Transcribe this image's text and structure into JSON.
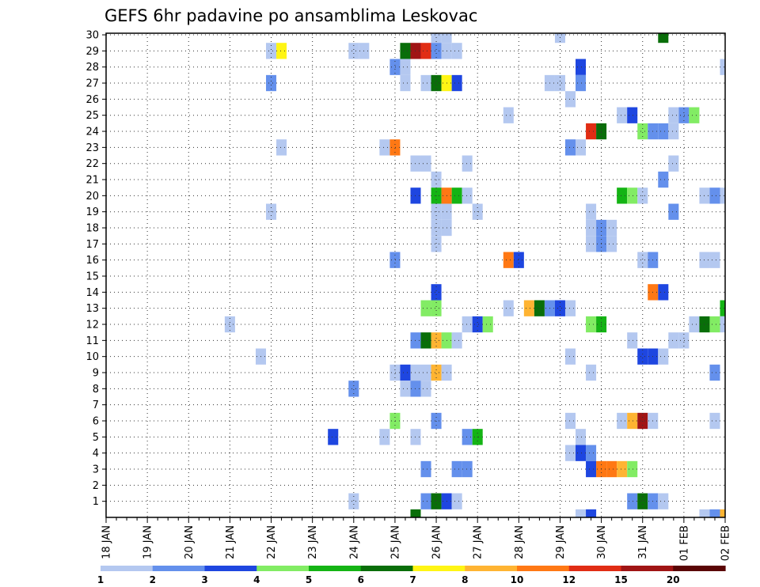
{
  "chart_data": {
    "type": "heatmap",
    "title": "GEFS 6hr padavine po ansamblima Leskovac",
    "y_members": [
      1,
      2,
      3,
      4,
      5,
      6,
      7,
      8,
      9,
      10,
      11,
      12,
      13,
      14,
      15,
      16,
      17,
      18,
      19,
      20,
      21,
      22,
      23,
      24,
      25,
      26,
      27,
      28,
      29,
      30
    ],
    "y_ticks": [
      "1",
      "2",
      "3",
      "4",
      "5",
      "6",
      "7",
      "8",
      "9",
      "10",
      "11",
      "12",
      "13",
      "14",
      "15",
      "16",
      "17",
      "18",
      "19",
      "20",
      "21",
      "22",
      "23",
      "24",
      "25",
      "26",
      "27",
      "28",
      "29",
      "30"
    ],
    "x_ticks": [
      "18 JAN",
      "19 JAN",
      "20 JAN",
      "21 JAN",
      "22 JAN",
      "23 JAN",
      "24 JAN",
      "25 JAN",
      "26 JAN",
      "27 JAN",
      "28 JAN",
      "29 JAN",
      "30 JAN",
      "31 JAN",
      "01 FEB",
      "02 FEB"
    ],
    "x_range": [
      "18 JAN 00Z",
      "02 FEB 00Z"
    ],
    "time_step": "6hr",
    "grid": true,
    "legend": {
      "position": "bottom",
      "levels": [
        "1",
        "2",
        "3",
        "4",
        "5",
        "6",
        "7",
        "8",
        "10",
        "12",
        "15",
        "20"
      ],
      "colors": [
        "#b4c8f0",
        "#6490ec",
        "#1e46e0",
        "#82ec64",
        "#14b414",
        "#096e09",
        "#fff514",
        "#ffb432",
        "#ff7814",
        "#e12d14",
        "#a01414",
        "#5a0505"
      ]
    },
    "cells": [
      {
        "member": 30,
        "time": "26 JAN 00Z",
        "bin": 0
      },
      {
        "member": 30,
        "time": "26 JAN 06Z",
        "bin": 0
      },
      {
        "member": 30,
        "time": "29 JAN 00Z",
        "bin": 0
      },
      {
        "member": 30,
        "time": "31 JAN 12Z",
        "bin": 5
      },
      {
        "member": 29,
        "time": "22 JAN 00Z",
        "bin": 0
      },
      {
        "member": 29,
        "time": "22 JAN 06Z",
        "bin": 6
      },
      {
        "member": 29,
        "time": "24 JAN 00Z",
        "bin": 0
      },
      {
        "member": 29,
        "time": "24 JAN 06Z",
        "bin": 0
      },
      {
        "member": 29,
        "time": "25 JAN 06Z",
        "bin": 5
      },
      {
        "member": 29,
        "time": "25 JAN 12Z",
        "bin": 10
      },
      {
        "member": 29,
        "time": "25 JAN 18Z",
        "bin": 9
      },
      {
        "member": 29,
        "time": "26 JAN 00Z",
        "bin": 1
      },
      {
        "member": 29,
        "time": "26 JAN 06Z",
        "bin": 0
      },
      {
        "member": 29,
        "time": "26 JAN 12Z",
        "bin": 0
      },
      {
        "member": 28,
        "time": "25 JAN 00Z",
        "bin": 1
      },
      {
        "member": 28,
        "time": "25 JAN 06Z",
        "bin": 0
      },
      {
        "member": 28,
        "time": "29 JAN 12Z",
        "bin": 2
      },
      {
        "member": 28,
        "time": "02 FEB 00Z",
        "bin": 0
      },
      {
        "member": 27,
        "time": "22 JAN 00Z",
        "bin": 1
      },
      {
        "member": 27,
        "time": "25 JAN 06Z",
        "bin": 0
      },
      {
        "member": 27,
        "time": "25 JAN 18Z",
        "bin": 0
      },
      {
        "member": 27,
        "time": "26 JAN 00Z",
        "bin": 5
      },
      {
        "member": 27,
        "time": "26 JAN 06Z",
        "bin": 6
      },
      {
        "member": 27,
        "time": "26 JAN 12Z",
        "bin": 2
      },
      {
        "member": 27,
        "time": "28 JAN 18Z",
        "bin": 0
      },
      {
        "member": 27,
        "time": "29 JAN 00Z",
        "bin": 0
      },
      {
        "member": 27,
        "time": "29 JAN 12Z",
        "bin": 1
      },
      {
        "member": 26,
        "time": "29 JAN 06Z",
        "bin": 0
      },
      {
        "member": 25,
        "time": "27 JAN 18Z",
        "bin": 0
      },
      {
        "member": 25,
        "time": "30 JAN 12Z",
        "bin": 0
      },
      {
        "member": 25,
        "time": "30 JAN 18Z",
        "bin": 2
      },
      {
        "member": 25,
        "time": "31 JAN 18Z",
        "bin": 0
      },
      {
        "member": 25,
        "time": "01 FEB 00Z",
        "bin": 1
      },
      {
        "member": 25,
        "time": "01 FEB 06Z",
        "bin": 3
      },
      {
        "member": 24,
        "time": "29 JAN 18Z",
        "bin": 9
      },
      {
        "member": 24,
        "time": "30 JAN 00Z",
        "bin": 5
      },
      {
        "member": 24,
        "time": "31 JAN 00Z",
        "bin": 3
      },
      {
        "member": 24,
        "time": "31 JAN 06Z",
        "bin": 1
      },
      {
        "member": 24,
        "time": "31 JAN 12Z",
        "bin": 1
      },
      {
        "member": 24,
        "time": "31 JAN 18Z",
        "bin": 0
      },
      {
        "member": 23,
        "time": "22 JAN 06Z",
        "bin": 0
      },
      {
        "member": 23,
        "time": "24 JAN 18Z",
        "bin": 0
      },
      {
        "member": 23,
        "time": "25 JAN 00Z",
        "bin": 8
      },
      {
        "member": 23,
        "time": "29 JAN 06Z",
        "bin": 1
      },
      {
        "member": 23,
        "time": "29 JAN 12Z",
        "bin": 0
      },
      {
        "member": 22,
        "time": "25 JAN 12Z",
        "bin": 0
      },
      {
        "member": 22,
        "time": "25 JAN 18Z",
        "bin": 0
      },
      {
        "member": 22,
        "time": "26 JAN 18Z",
        "bin": 0
      },
      {
        "member": 22,
        "time": "31 JAN 18Z",
        "bin": 0
      },
      {
        "member": 21,
        "time": "26 JAN 00Z",
        "bin": 0
      },
      {
        "member": 21,
        "time": "31 JAN 12Z",
        "bin": 1
      },
      {
        "member": 20,
        "time": "25 JAN 12Z",
        "bin": 2
      },
      {
        "member": 20,
        "time": "26 JAN 00Z",
        "bin": 4
      },
      {
        "member": 20,
        "time": "26 JAN 06Z",
        "bin": 8
      },
      {
        "member": 20,
        "time": "26 JAN 12Z",
        "bin": 4
      },
      {
        "member": 20,
        "time": "26 JAN 18Z",
        "bin": 0
      },
      {
        "member": 20,
        "time": "30 JAN 12Z",
        "bin": 4
      },
      {
        "member": 20,
        "time": "30 JAN 18Z",
        "bin": 3
      },
      {
        "member": 20,
        "time": "31 JAN 00Z",
        "bin": 0
      },
      {
        "member": 20,
        "time": "01 FEB 12Z",
        "bin": 0
      },
      {
        "member": 20,
        "time": "01 FEB 18Z",
        "bin": 1
      },
      {
        "member": 20,
        "time": "02 FEB 00Z",
        "bin": 0
      },
      {
        "member": 19,
        "time": "22 JAN 00Z",
        "bin": 0
      },
      {
        "member": 19,
        "time": "26 JAN 00Z",
        "bin": 0
      },
      {
        "member": 19,
        "time": "26 JAN 06Z",
        "bin": 0
      },
      {
        "member": 19,
        "time": "27 JAN 00Z",
        "bin": 0
      },
      {
        "member": 19,
        "time": "29 JAN 18Z",
        "bin": 0
      },
      {
        "member": 19,
        "time": "31 JAN 18Z",
        "bin": 1
      },
      {
        "member": 18,
        "time": "26 JAN 00Z",
        "bin": 0
      },
      {
        "member": 18,
        "time": "26 JAN 06Z",
        "bin": 0
      },
      {
        "member": 18,
        "time": "29 JAN 18Z",
        "bin": 0
      },
      {
        "member": 18,
        "time": "30 JAN 00Z",
        "bin": 1
      },
      {
        "member": 18,
        "time": "30 JAN 06Z",
        "bin": 0
      },
      {
        "member": 17,
        "time": "26 JAN 00Z",
        "bin": 0
      },
      {
        "member": 17,
        "time": "29 JAN 18Z",
        "bin": 0
      },
      {
        "member": 17,
        "time": "30 JAN 00Z",
        "bin": 1
      },
      {
        "member": 17,
        "time": "30 JAN 06Z",
        "bin": 0
      },
      {
        "member": 16,
        "time": "25 JAN 00Z",
        "bin": 1
      },
      {
        "member": 16,
        "time": "27 JAN 18Z",
        "bin": 8
      },
      {
        "member": 16,
        "time": "28 JAN 00Z",
        "bin": 2
      },
      {
        "member": 16,
        "time": "31 JAN 00Z",
        "bin": 0
      },
      {
        "member": 16,
        "time": "31 JAN 06Z",
        "bin": 1
      },
      {
        "member": 16,
        "time": "01 FEB 12Z",
        "bin": 0
      },
      {
        "member": 16,
        "time": "01 FEB 18Z",
        "bin": 0
      },
      {
        "member": 14,
        "time": "26 JAN 00Z",
        "bin": 2
      },
      {
        "member": 14,
        "time": "31 JAN 06Z",
        "bin": 8
      },
      {
        "member": 14,
        "time": "31 JAN 12Z",
        "bin": 2
      },
      {
        "member": 13,
        "time": "25 JAN 18Z",
        "bin": 3
      },
      {
        "member": 13,
        "time": "26 JAN 00Z",
        "bin": 3
      },
      {
        "member": 13,
        "time": "27 JAN 18Z",
        "bin": 0
      },
      {
        "member": 13,
        "time": "28 JAN 06Z",
        "bin": 7
      },
      {
        "member": 13,
        "time": "28 JAN 12Z",
        "bin": 5
      },
      {
        "member": 13,
        "time": "28 JAN 18Z",
        "bin": 1
      },
      {
        "member": 13,
        "time": "29 JAN 00Z",
        "bin": 2
      },
      {
        "member": 13,
        "time": "29 JAN 06Z",
        "bin": 0
      },
      {
        "member": 13,
        "time": "02 FEB 00Z",
        "bin": 4
      },
      {
        "member": 12,
        "time": "21 JAN 00Z",
        "bin": 0
      },
      {
        "member": 12,
        "time": "26 JAN 18Z",
        "bin": 0
      },
      {
        "member": 12,
        "time": "27 JAN 00Z",
        "bin": 2
      },
      {
        "member": 12,
        "time": "27 JAN 06Z",
        "bin": 3
      },
      {
        "member": 12,
        "time": "29 JAN 18Z",
        "bin": 3
      },
      {
        "member": 12,
        "time": "30 JAN 00Z",
        "bin": 4
      },
      {
        "member": 12,
        "time": "01 FEB 06Z",
        "bin": 0
      },
      {
        "member": 12,
        "time": "01 FEB 12Z",
        "bin": 5
      },
      {
        "member": 12,
        "time": "01 FEB 18Z",
        "bin": 3
      },
      {
        "member": 12,
        "time": "02 FEB 00Z",
        "bin": 0
      },
      {
        "member": 11,
        "time": "25 JAN 12Z",
        "bin": 1
      },
      {
        "member": 11,
        "time": "25 JAN 18Z",
        "bin": 5
      },
      {
        "member": 11,
        "time": "26 JAN 00Z",
        "bin": 7
      },
      {
        "member": 11,
        "time": "26 JAN 06Z",
        "bin": 3
      },
      {
        "member": 11,
        "time": "26 JAN 12Z",
        "bin": 0
      },
      {
        "member": 11,
        "time": "30 JAN 18Z",
        "bin": 0
      },
      {
        "member": 11,
        "time": "31 JAN 18Z",
        "bin": 0
      },
      {
        "member": 11,
        "time": "01 FEB 00Z",
        "bin": 0
      },
      {
        "member": 10,
        "time": "21 JAN 18Z",
        "bin": 0
      },
      {
        "member": 10,
        "time": "29 JAN 06Z",
        "bin": 0
      },
      {
        "member": 10,
        "time": "31 JAN 00Z",
        "bin": 2
      },
      {
        "member": 10,
        "time": "31 JAN 06Z",
        "bin": 2
      },
      {
        "member": 10,
        "time": "31 JAN 12Z",
        "bin": 0
      },
      {
        "member": 9,
        "time": "25 JAN 00Z",
        "bin": 0
      },
      {
        "member": 9,
        "time": "25 JAN 06Z",
        "bin": 2
      },
      {
        "member": 9,
        "time": "25 JAN 12Z",
        "bin": 0
      },
      {
        "member": 9,
        "time": "25 JAN 18Z",
        "bin": 0
      },
      {
        "member": 9,
        "time": "26 JAN 00Z",
        "bin": 7
      },
      {
        "member": 9,
        "time": "26 JAN 06Z",
        "bin": 0
      },
      {
        "member": 9,
        "time": "29 JAN 18Z",
        "bin": 0
      },
      {
        "member": 9,
        "time": "01 FEB 18Z",
        "bin": 1
      },
      {
        "member": 8,
        "time": "24 JAN 00Z",
        "bin": 1
      },
      {
        "member": 8,
        "time": "25 JAN 06Z",
        "bin": 0
      },
      {
        "member": 8,
        "time": "25 JAN 12Z",
        "bin": 1
      },
      {
        "member": 8,
        "time": "25 JAN 18Z",
        "bin": 0
      },
      {
        "member": 6,
        "time": "25 JAN 00Z",
        "bin": 3
      },
      {
        "member": 6,
        "time": "26 JAN 00Z",
        "bin": 1
      },
      {
        "member": 6,
        "time": "29 JAN 06Z",
        "bin": 0
      },
      {
        "member": 6,
        "time": "30 JAN 12Z",
        "bin": 0
      },
      {
        "member": 6,
        "time": "30 JAN 18Z",
        "bin": 7
      },
      {
        "member": 6,
        "time": "31 JAN 00Z",
        "bin": 10
      },
      {
        "member": 6,
        "time": "31 JAN 06Z",
        "bin": 0
      },
      {
        "member": 6,
        "time": "01 FEB 18Z",
        "bin": 0
      },
      {
        "member": 5,
        "time": "23 JAN 12Z",
        "bin": 2
      },
      {
        "member": 5,
        "time": "24 JAN 18Z",
        "bin": 0
      },
      {
        "member": 5,
        "time": "25 JAN 12Z",
        "bin": 0
      },
      {
        "member": 5,
        "time": "26 JAN 18Z",
        "bin": 1
      },
      {
        "member": 5,
        "time": "27 JAN 00Z",
        "bin": 4
      },
      {
        "member": 5,
        "time": "29 JAN 12Z",
        "bin": 0
      },
      {
        "member": 4,
        "time": "29 JAN 06Z",
        "bin": 0
      },
      {
        "member": 4,
        "time": "29 JAN 12Z",
        "bin": 2
      },
      {
        "member": 4,
        "time": "29 JAN 18Z",
        "bin": 1
      },
      {
        "member": 3,
        "time": "25 JAN 18Z",
        "bin": 1
      },
      {
        "member": 3,
        "time": "26 JAN 12Z",
        "bin": 1
      },
      {
        "member": 3,
        "time": "26 JAN 18Z",
        "bin": 1
      },
      {
        "member": 3,
        "time": "29 JAN 18Z",
        "bin": 2
      },
      {
        "member": 3,
        "time": "30 JAN 00Z",
        "bin": 8
      },
      {
        "member": 3,
        "time": "30 JAN 06Z",
        "bin": 8
      },
      {
        "member": 3,
        "time": "30 JAN 12Z",
        "bin": 7
      },
      {
        "member": 3,
        "time": "30 JAN 18Z",
        "bin": 3
      },
      {
        "member": 1,
        "time": "24 JAN 00Z",
        "bin": 0
      },
      {
        "member": 1,
        "time": "25 JAN 18Z",
        "bin": 1
      },
      {
        "member": 1,
        "time": "26 JAN 00Z",
        "bin": 5
      },
      {
        "member": 1,
        "time": "26 JAN 06Z",
        "bin": 2
      },
      {
        "member": 1,
        "time": "26 JAN 12Z",
        "bin": 0
      },
      {
        "member": 1,
        "time": "30 JAN 18Z",
        "bin": 1
      },
      {
        "member": 1,
        "time": "31 JAN 00Z",
        "bin": 5
      },
      {
        "member": 1,
        "time": "31 JAN 06Z",
        "bin": 1
      },
      {
        "member": 1,
        "time": "31 JAN 12Z",
        "bin": 0
      },
      {
        "member": 0,
        "time": "25 JAN 12Z",
        "bin": 5
      },
      {
        "member": 0,
        "time": "29 JAN 12Z",
        "bin": 0
      },
      {
        "member": 0,
        "time": "29 JAN 18Z",
        "bin": 2
      },
      {
        "member": 0,
        "time": "01 FEB 12Z",
        "bin": 0
      },
      {
        "member": 0,
        "time": "01 FEB 18Z",
        "bin": 1
      },
      {
        "member": 0,
        "time": "02 FEB 00Z",
        "bin": 7
      }
    ]
  }
}
